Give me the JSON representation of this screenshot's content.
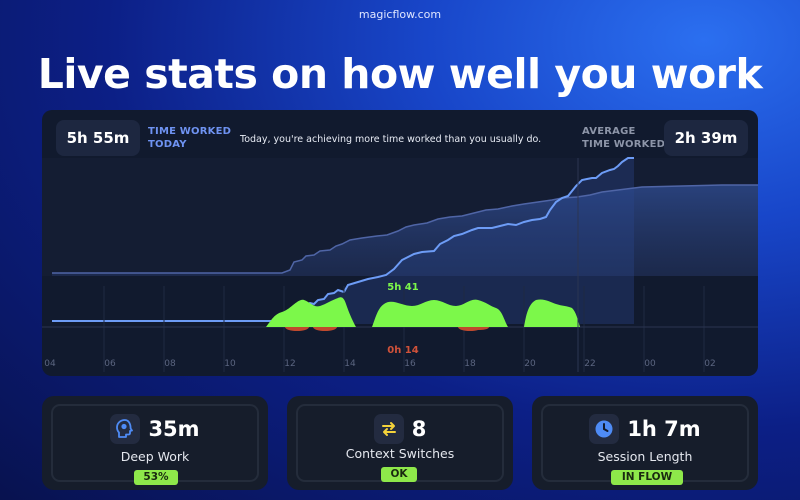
{
  "site": "magicflow.com",
  "headline": "Live stats on how well you work",
  "panel": {
    "time_worked_today": "5h 55m",
    "time_worked_label_1": "TIME WORKED",
    "time_worked_label_2": "TODAY",
    "message": "Today, you're achieving more time worked than you usually do.",
    "average_label_1": "AVERAGE",
    "average_label_2": "TIME WORKED",
    "average_value": "2h 39m",
    "peak_label": "5h 41",
    "low_label": "0h 14",
    "hours": [
      "04",
      "06",
      "08",
      "10",
      "12",
      "14",
      "16",
      "18",
      "20",
      "22",
      "00",
      "02"
    ]
  },
  "colors": {
    "today_line": "#6d9cf6",
    "average_line": "#4f65a6",
    "flow_green": "#7cf84a",
    "low_red": "#c04a2e",
    "badge": "#8ee84a"
  },
  "stats": [
    {
      "icon": "head-icon",
      "value": "35m",
      "label": "Deep Work",
      "badge": "53%"
    },
    {
      "icon": "switch-arrows-icon",
      "value": "8",
      "label": "Context Switches",
      "badge": "OK"
    },
    {
      "icon": "clock-icon",
      "value": "1h 7m",
      "label": "Session Length",
      "badge": "IN FLOW"
    }
  ]
}
